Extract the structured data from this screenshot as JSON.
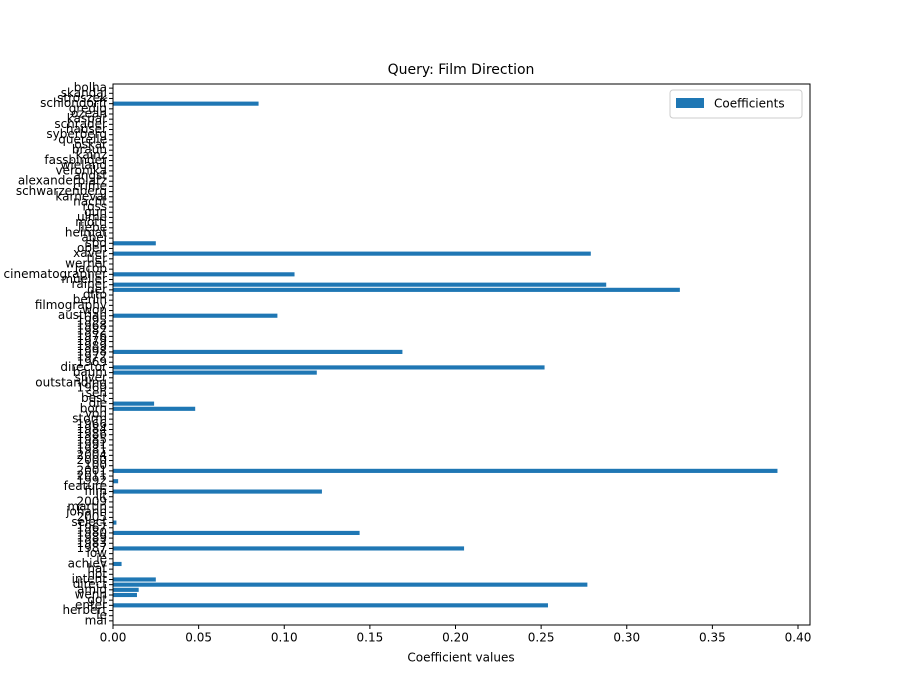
{
  "chart_data": {
    "type": "barh",
    "title": "Query: Film Direction",
    "xlabel": "Coefficient values",
    "categories": [
      "mai",
      "le",
      "herbert",
      "enter",
      "got",
      "wenn",
      "amid",
      "direct",
      "intent",
      "not",
      "hat",
      "achiev",
      "ie",
      "low",
      "1987",
      "1983",
      "1989",
      "1980",
      "1967",
      "select",
      "2005",
      "johann",
      "martin",
      "2009",
      "lit",
      "film",
      "feature",
      "1992",
      "2011",
      "2001",
      "100",
      "2000",
      "2004",
      "1981",
      "1991",
      "1985",
      "1986",
      "1984",
      "1966",
      "storm",
      "von",
      "born",
      "die",
      "best",
      "sen",
      "1960",
      "outstanding",
      "silver",
      "baum",
      "director",
      "1969",
      "1972",
      "1998",
      "1989",
      "1979",
      "1976",
      "1982",
      "1968",
      "1995",
      "austrian",
      "won",
      "filmography",
      "berlin",
      "otto",
      "der",
      "rainer",
      "mueller",
      "cinematographer",
      "jacob",
      "werner",
      "tier",
      "xaver",
      "oben",
      "sbd",
      "abel",
      "heimat",
      "liebe",
      "mottl",
      "ulme",
      "gun",
      "ross",
      "nacht",
      "karneval",
      "schwarzenberg",
      "crime",
      "alexanderplatz",
      "angst",
      "veronika",
      "wieland",
      "fassbinder",
      "kainz",
      "braun",
      "oskar",
      "querelle",
      "syberberg",
      "hauser",
      "schrader",
      "kaspar",
      "ozean",
      "gredig",
      "schlondorff",
      "stroszek",
      "skandal",
      "bolha"
    ],
    "series": [
      {
        "name": "Coefficients",
        "color": "#1f77b4",
        "values": [
          0,
          0,
          0,
          0.254,
          0,
          0.014,
          0.015,
          0.277,
          0.025,
          0,
          0,
          0.005,
          0,
          0,
          0.205,
          0,
          0,
          0.144,
          0,
          0.002,
          0,
          0,
          0,
          0,
          0,
          0.122,
          0,
          0.003,
          0,
          0.388,
          0,
          0,
          0,
          0,
          0,
          0,
          0,
          0,
          0,
          0,
          0,
          0.048,
          0.024,
          0,
          0,
          0,
          0,
          0,
          0.119,
          0.252,
          0,
          0,
          0.169,
          0,
          0,
          0,
          0,
          0,
          0,
          0.096,
          0,
          0,
          0,
          0,
          0.331,
          0.288,
          0,
          0.106,
          0,
          0,
          0,
          0.279,
          0,
          0.025,
          0,
          0,
          0,
          0,
          0,
          0,
          0,
          0,
          0,
          0,
          0,
          0,
          0,
          0,
          0,
          0,
          0,
          0,
          0,
          0,
          0,
          0,
          0,
          0,
          0,
          0,
          0.085,
          0,
          0,
          0
        ]
      }
    ],
    "xlim": [
      0,
      0.407
    ],
    "xticks": [
      {
        "value": 0,
        "label": "0.00"
      },
      0.05,
      {
        "value": 0.1,
        "label": "0.10"
      },
      0.15,
      {
        "value": 0.2,
        "label": "0.20"
      },
      0.25,
      {
        "value": 0.3,
        "label": "0.30"
      },
      0.35,
      {
        "value": 0.4,
        "label": "0.40"
      }
    ],
    "legend": "upper right"
  }
}
